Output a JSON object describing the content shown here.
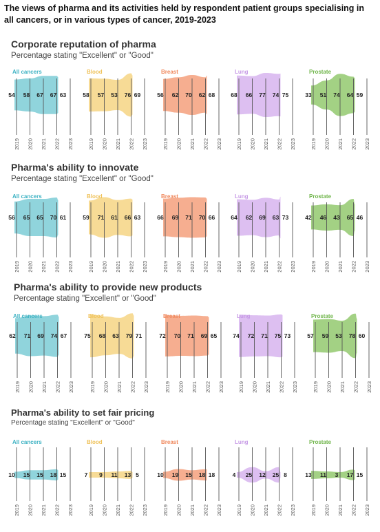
{
  "title": "The views of pharma and its activities held by respondent patient groups specialising in all cancers, or in various types of cancer, 2019-2023",
  "colors": {
    "All cancers": "#7dcdd6",
    "Blood": "#f6d584",
    "Breast": "#f4a07c",
    "Lung": "#d7b4ee",
    "Prostate": "#93c96e"
  },
  "label_colors": {
    "All cancers": "#3fb3c4",
    "Blood": "#efc25a",
    "Breast": "#f08a5f",
    "Lung": "#c79ae6",
    "Prostate": "#6fb54a"
  },
  "chart_data": [
    {
      "type": "area",
      "title": "Corporate reputation of pharma",
      "subtitle": "Percentage stating \"Excellent\" or \"Good\"",
      "x": [
        "2019",
        "2020",
        "2021",
        "2022",
        "2023"
      ],
      "series": [
        {
          "name": "All cancers",
          "values": [
            54,
            58,
            67,
            67,
            63
          ]
        },
        {
          "name": "Blood",
          "values": [
            58,
            57,
            53,
            76,
            69
          ]
        },
        {
          "name": "Breast",
          "values": [
            56,
            62,
            70,
            62,
            68
          ]
        },
        {
          "name": "Lung",
          "values": [
            68,
            66,
            77,
            74,
            75
          ]
        },
        {
          "name": "Prostate",
          "values": [
            33,
            51,
            74,
            64,
            59
          ]
        }
      ]
    },
    {
      "type": "area",
      "title": "Pharma's ability to innovate",
      "subtitle": "Percentage stating \"Excellent\" or \"Good\"",
      "x": [
        "2019",
        "2020",
        "2021",
        "2022",
        "2023"
      ],
      "series": [
        {
          "name": "All cancers",
          "values": [
            56,
            65,
            65,
            70,
            61
          ]
        },
        {
          "name": "Blood",
          "values": [
            59,
            71,
            61,
            66,
            63
          ]
        },
        {
          "name": "Breast",
          "values": [
            66,
            69,
            71,
            70,
            66
          ]
        },
        {
          "name": "Lung",
          "values": [
            64,
            62,
            69,
            63,
            73
          ]
        },
        {
          "name": "Prostate",
          "values": [
            42,
            46,
            43,
            65,
            46
          ]
        }
      ]
    },
    {
      "type": "area",
      "title": "Pharma's ability to provide new products",
      "subtitle": "Percentage stating \"Excellent\" or \"Good\"",
      "x": [
        "2019",
        "2020",
        "2021",
        "2022",
        "2023"
      ],
      "series": [
        {
          "name": "All cancers",
          "values": [
            62,
            71,
            69,
            74,
            67
          ]
        },
        {
          "name": "Blood",
          "values": [
            75,
            68,
            63,
            79,
            71
          ]
        },
        {
          "name": "Breast",
          "values": [
            72,
            70,
            71,
            69,
            65
          ]
        },
        {
          "name": "Lung",
          "values": [
            74,
            72,
            71,
            75,
            73
          ]
        },
        {
          "name": "Prostate",
          "values": [
            57,
            59,
            53,
            78,
            60
          ]
        }
      ]
    },
    {
      "type": "area",
      "title": "Pharma's ability to set fair pricing",
      "subtitle": "Percentage stating \"Excellent\" or \"Good\"",
      "x": [
        "2019",
        "2020",
        "2021",
        "2022",
        "2023"
      ],
      "series": [
        {
          "name": "All cancers",
          "values": [
            10,
            15,
            15,
            18,
            15
          ]
        },
        {
          "name": "Blood",
          "values": [
            7,
            9,
            11,
            13,
            5
          ]
        },
        {
          "name": "Breast",
          "values": [
            10,
            19,
            15,
            18,
            18
          ]
        },
        {
          "name": "Lung",
          "values": [
            4,
            25,
            12,
            25,
            8
          ]
        },
        {
          "name": "Prostate",
          "values": [
            13,
            11,
            3,
            17,
            15
          ]
        }
      ]
    }
  ]
}
